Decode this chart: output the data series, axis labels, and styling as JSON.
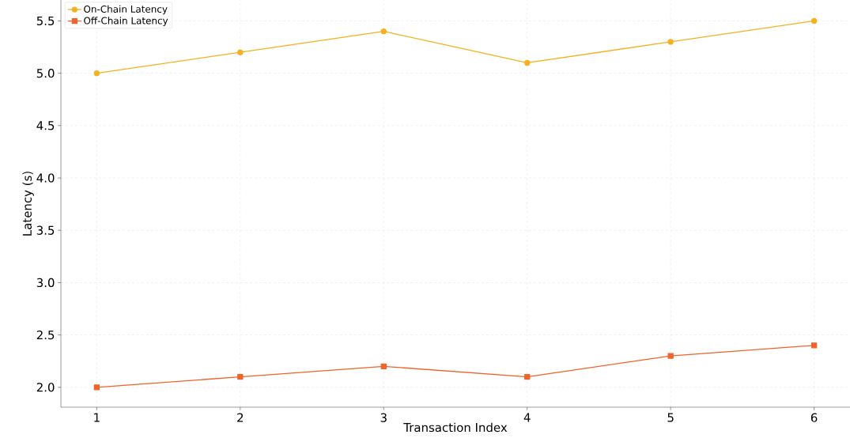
{
  "chart_data": {
    "type": "line",
    "xlabel": "Transaction Index",
    "ylabel": "Latency (s)",
    "x": [
      1,
      2,
      3,
      4,
      5,
      6
    ],
    "series": [
      {
        "name": "On-Chain Latency",
        "color": "#f5b01e",
        "marker": "circle",
        "values": [
          5.0,
          5.2,
          5.4,
          5.1,
          5.3,
          5.5
        ]
      },
      {
        "name": "Off-Chain Latency",
        "color": "#f0632a",
        "marker": "square",
        "values": [
          2.0,
          2.1,
          2.2,
          2.1,
          2.3,
          2.4
        ]
      }
    ],
    "xlim": [
      0.75,
      6.25
    ],
    "ylim": [
      1.81,
      5.7
    ],
    "xticks": [
      1,
      2,
      3,
      4,
      5,
      6
    ],
    "yticks": [
      {
        "value": 2,
        "label": "2.0"
      },
      {
        "value": 2.5,
        "label": "2.5"
      },
      {
        "value": 3,
        "label": "3.0"
      },
      {
        "value": 3.5,
        "label": "3.5"
      },
      {
        "value": 4,
        "label": "4.0"
      },
      {
        "value": 4.5,
        "label": "4.5"
      },
      {
        "value": 5,
        "label": "5.0"
      },
      {
        "value": 5.5,
        "label": "5.5"
      }
    ],
    "grid": true,
    "legend": "top left",
    "line_style": "solid"
  }
}
